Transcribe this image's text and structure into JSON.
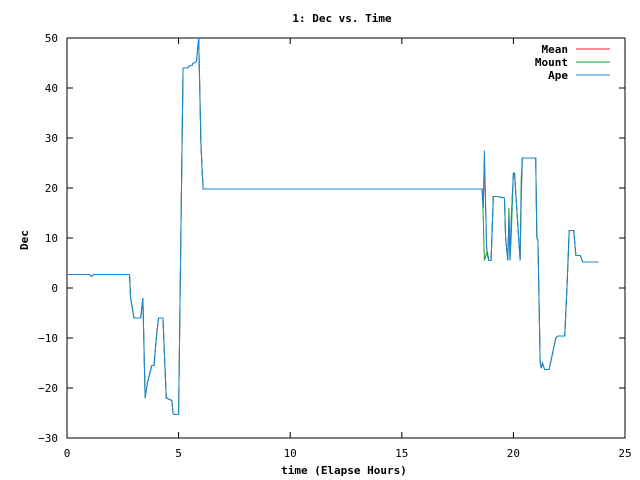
{
  "chart_data": {
    "type": "line",
    "title": "1: Dec vs. Time",
    "xlabel": "time (Elapse Hours)",
    "ylabel": "Dec",
    "xlim": [
      0,
      25
    ],
    "ylim": [
      -30,
      50
    ],
    "xticks": [
      0,
      5,
      10,
      15,
      20,
      25
    ],
    "yticks": [
      -30,
      -20,
      -10,
      0,
      10,
      20,
      30,
      40,
      50
    ],
    "grid": false,
    "legend_position": "top-right",
    "series": [
      {
        "name": "Mean",
        "color": "#e8212b",
        "x": [
          0,
          1.0,
          1.1,
          1.2,
          2.8,
          2.85,
          3.0,
          3.3,
          3.4,
          3.5,
          3.6,
          3.8,
          3.9,
          4.0,
          4.1,
          4.3,
          4.4,
          4.45,
          4.7,
          4.75,
          4.8,
          5.0,
          5.1,
          5.2,
          5.25,
          5.3,
          5.4,
          5.5,
          5.6,
          5.65,
          5.7,
          5.8,
          5.9,
          6.0,
          6.05,
          6.1,
          10.0,
          15.0,
          18.6,
          18.65,
          18.7,
          18.8,
          18.9,
          19.0,
          19.1,
          19.2,
          19.3,
          19.6,
          19.65,
          19.75,
          19.8,
          19.85,
          19.9,
          20.0,
          20.05,
          20.3,
          20.35,
          20.4,
          20.5,
          20.55,
          20.6,
          20.7,
          21.0,
          21.05,
          21.1,
          21.2,
          21.25,
          21.3,
          21.4,
          21.45,
          21.6,
          21.9,
          22.0,
          22.1,
          22.3,
          22.4,
          22.5,
          22.6,
          22.7,
          22.8,
          23.0,
          23.1,
          23.8
        ],
        "values": [
          2.7,
          2.7,
          2.3,
          2.7,
          2.7,
          -2.0,
          -6.0,
          -6.0,
          -2.0,
          -22.0,
          -19.0,
          -15.5,
          -15.5,
          -10.0,
          -6.0,
          -6.0,
          -17.0,
          -22.0,
          -22.5,
          -25.0,
          -25.3,
          -25.3,
          10.0,
          44.0,
          44.0,
          44.0,
          44.0,
          44.5,
          44.5,
          45.0,
          45.0,
          45.3,
          50.0,
          29.0,
          24.0,
          19.8,
          19.8,
          19.8,
          19.8,
          16.0,
          26.0,
          8.0,
          5.5,
          5.5,
          18.3,
          18.3,
          18.3,
          18.0,
          10.0,
          5.5,
          14.0,
          5.5,
          13.5,
          23.0,
          23.0,
          5.5,
          18.0,
          26.0,
          26.0,
          26.0,
          26.0,
          26.0,
          26.0,
          10.0,
          9.5,
          -15.0,
          -16.0,
          -15.0,
          -16.3,
          -16.3,
          -16.3,
          -10.0,
          -9.6,
          -9.6,
          -9.6,
          0.0,
          11.5,
          11.5,
          11.5,
          6.5,
          6.5,
          5.2,
          5.2
        ]
      },
      {
        "name": "Mount",
        "color": "#11a12b",
        "x": [
          0,
          1.0,
          1.1,
          1.2,
          2.8,
          2.85,
          3.0,
          3.3,
          3.4,
          3.5,
          3.6,
          3.8,
          3.9,
          4.0,
          4.1,
          4.3,
          4.4,
          4.45,
          4.7,
          4.75,
          4.8,
          5.0,
          5.1,
          5.2,
          5.25,
          5.3,
          5.4,
          5.5,
          5.6,
          5.65,
          5.7,
          5.8,
          5.9,
          6.0,
          6.05,
          6.1,
          10.0,
          15.0,
          18.6,
          18.65,
          18.7,
          18.8,
          18.9,
          19.0,
          19.1,
          19.2,
          19.3,
          19.6,
          19.65,
          19.75,
          19.8,
          19.85,
          19.9,
          20.0,
          20.05,
          20.3,
          20.35,
          20.4,
          20.5,
          20.55,
          20.6,
          20.7,
          21.0,
          21.05,
          21.1,
          21.2,
          21.25,
          21.3,
          21.4,
          21.45,
          21.6,
          21.9,
          22.0,
          22.1,
          22.3,
          22.4,
          22.5,
          22.6,
          22.7,
          22.8,
          23.0,
          23.1,
          23.8
        ],
        "values": [
          2.7,
          2.7,
          2.3,
          2.7,
          2.7,
          -2.0,
          -6.0,
          -6.0,
          -2.0,
          -22.0,
          -19.0,
          -15.5,
          -15.5,
          -10.0,
          -6.0,
          -6.0,
          -17.0,
          -22.0,
          -22.5,
          -25.0,
          -25.3,
          -25.3,
          10.0,
          44.0,
          44.0,
          44.0,
          44.0,
          44.5,
          44.5,
          45.0,
          45.0,
          45.3,
          50.0,
          29.0,
          24.0,
          19.8,
          19.8,
          19.8,
          19.8,
          14.0,
          5.5,
          7.0,
          5.5,
          5.5,
          18.3,
          18.3,
          18.3,
          18.0,
          10.0,
          5.5,
          16.0,
          5.5,
          10.0,
          23.0,
          23.0,
          5.5,
          22.0,
          26.0,
          26.0,
          26.0,
          26.0,
          26.0,
          26.0,
          10.0,
          9.5,
          -15.0,
          -16.0,
          -15.0,
          -16.3,
          -16.3,
          -16.3,
          -10.0,
          -9.6,
          -9.6,
          -9.6,
          0.0,
          11.5,
          11.5,
          11.5,
          6.5,
          6.5,
          5.2,
          5.2
        ]
      },
      {
        "name": "Ape",
        "color": "#1a87d8",
        "x": [
          0,
          1.0,
          1.1,
          1.2,
          2.8,
          2.85,
          3.0,
          3.3,
          3.4,
          3.5,
          3.6,
          3.8,
          3.9,
          4.0,
          4.1,
          4.3,
          4.4,
          4.45,
          4.7,
          4.75,
          4.8,
          5.0,
          5.1,
          5.2,
          5.25,
          5.3,
          5.4,
          5.5,
          5.6,
          5.65,
          5.7,
          5.8,
          5.9,
          6.0,
          6.05,
          6.1,
          10.0,
          15.0,
          18.6,
          18.65,
          18.7,
          18.8,
          18.9,
          19.0,
          19.1,
          19.2,
          19.3,
          19.6,
          19.65,
          19.75,
          19.8,
          19.85,
          19.9,
          20.0,
          20.05,
          20.3,
          20.35,
          20.4,
          20.5,
          20.55,
          20.6,
          20.7,
          21.0,
          21.05,
          21.1,
          21.2,
          21.25,
          21.3,
          21.4,
          21.45,
          21.6,
          21.9,
          22.0,
          22.1,
          22.3,
          22.4,
          22.5,
          22.6,
          22.7,
          22.8,
          23.0,
          23.1,
          23.8
        ],
        "values": [
          2.7,
          2.7,
          2.3,
          2.7,
          2.7,
          -2.0,
          -6.0,
          -6.0,
          -2.0,
          -22.0,
          -19.0,
          -15.5,
          -15.5,
          -10.0,
          -6.0,
          -6.0,
          -17.0,
          -22.0,
          -22.5,
          -25.0,
          -25.3,
          -25.3,
          10.0,
          44.0,
          44.0,
          44.0,
          44.0,
          44.5,
          44.5,
          45.0,
          45.0,
          45.3,
          50.0,
          29.0,
          24.0,
          19.8,
          19.8,
          19.8,
          19.8,
          16.0,
          27.5,
          8.0,
          5.5,
          5.5,
          18.3,
          18.3,
          18.3,
          18.0,
          10.0,
          5.5,
          14.0,
          5.5,
          13.5,
          23.0,
          23.0,
          5.5,
          18.0,
          26.0,
          26.0,
          26.0,
          26.0,
          26.0,
          26.0,
          10.0,
          9.5,
          -15.0,
          -16.0,
          -15.0,
          -16.3,
          -16.3,
          -16.3,
          -10.0,
          -9.6,
          -9.6,
          -9.6,
          0.0,
          11.5,
          11.5,
          11.5,
          6.5,
          6.5,
          5.2,
          5.2
        ]
      }
    ]
  }
}
